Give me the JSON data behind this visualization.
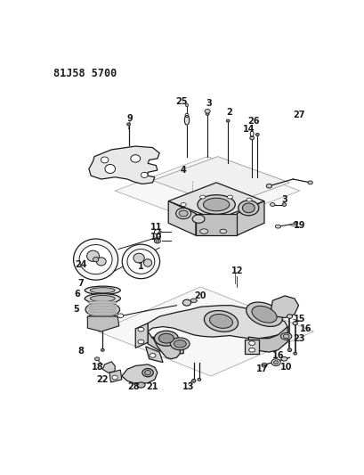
{
  "title": "81J58 5700",
  "bg_color": "#ffffff",
  "lc": "#1a1a1a",
  "fig_width": 4.09,
  "fig_height": 5.33,
  "dpi": 100
}
